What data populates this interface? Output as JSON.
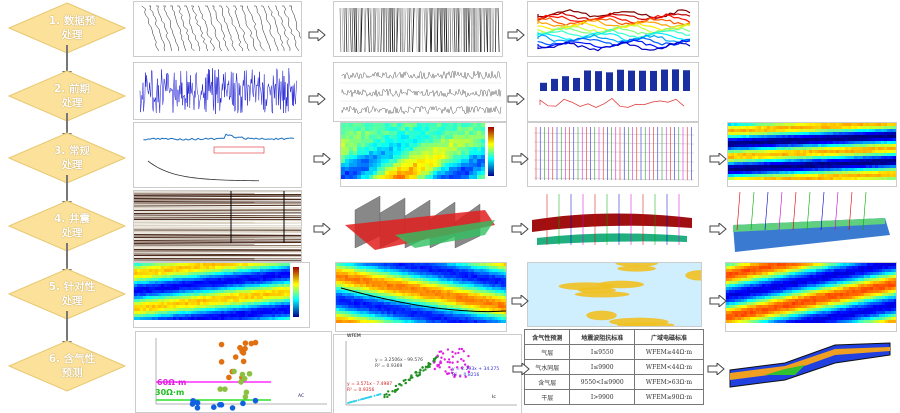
{
  "steps": [
    {
      "line1": "1. 数据预",
      "line2": "处理"
    },
    {
      "line1": "2. 前期",
      "line2": "处理"
    },
    {
      "line1": "3. 常规",
      "line2": "处理"
    },
    {
      "line1": "4. 井震",
      "line2": "处理"
    },
    {
      "line1": "5. 针对性",
      "line2": "处理"
    },
    {
      "line1": "6. 含气性",
      "line2": "预测"
    }
  ],
  "crossplot": {
    "line_high": "60Ω·m",
    "line_low": "30Ω·m",
    "xlabel": "AC"
  },
  "regression": {
    "ylabel": "WFEM",
    "xlabel": "Ic",
    "eq_green": "y = 3.2506x - 99.576",
    "r2_green": "R² = 0.9369",
    "eq_red": "y = 3.571x - 7.4987",
    "r2_red": "R² = 0.9356",
    "eq_blue": "y = 2.293x + 34.275",
    "r2_blue": "R² = 0.8216"
  },
  "table": {
    "headers": [
      "含气性预测",
      "地震波阻抗标准",
      "广域电磁标准"
    ],
    "rows": [
      [
        "气层",
        "I≤9550",
        "WFEM≥44Ω·m"
      ],
      [
        "气水同层",
        "I≤9900",
        "WFEM<44Ω·m"
      ],
      [
        "含气层",
        "9550<I≤9900",
        "WFEM>63Ω·m"
      ],
      [
        "干层",
        "I>9900",
        "WFEM≥90Ω·m"
      ]
    ]
  },
  "colors": {
    "diamond": "#fbe19a",
    "arrow": "#777777",
    "blue": "#1010d0"
  }
}
